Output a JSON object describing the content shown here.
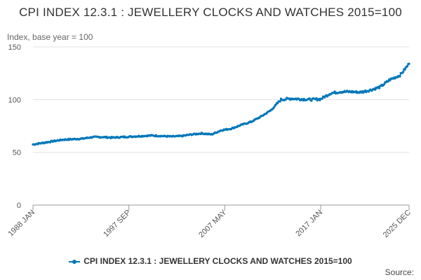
{
  "chart_data": {
    "type": "line",
    "title": "CPI INDEX 12.3.1 : JEWELLERY CLOCKS AND WATCHES 2015=100",
    "ylabel": "Index, base year = 100",
    "xlabel": "",
    "ylim": [
      0,
      150
    ],
    "yticks": [
      0,
      50,
      100,
      150
    ],
    "xticks": [
      "1988 JAN",
      "1997 SEP",
      "2007 MAY",
      "2017 JAN",
      "2025 DEC"
    ],
    "xrange": [
      "1988 JAN",
      "2025 DEC"
    ],
    "grid": true,
    "legend_position": "bottom",
    "series": [
      {
        "name": "CPI INDEX 12.3.1 : JEWELLERY CLOCKS AND WATCHES 2015=100",
        "color": "#0077b9",
        "x": [
          "1988 JAN",
          "1989 JAN",
          "1990 JAN",
          "1991 JAN",
          "1992 JAN",
          "1993 JAN",
          "1994 JAN",
          "1995 JAN",
          "1996 JAN",
          "1997 JAN",
          "1998 JAN",
          "1999 JAN",
          "2000 JAN",
          "2001 JAN",
          "2002 JAN",
          "2003 JAN",
          "2004 JAN",
          "2005 JAN",
          "2006 JAN",
          "2007 JAN",
          "2008 JAN",
          "2009 JAN",
          "2010 JAN",
          "2011 JAN",
          "2012 JAN",
          "2013 JAN",
          "2014 JAN",
          "2015 JAN",
          "2016 JAN",
          "2017 JAN",
          "2018 JAN",
          "2019 JAN",
          "2020 JAN",
          "2021 JAN",
          "2022 JAN",
          "2023 JAN",
          "2024 JAN",
          "2025 JAN",
          "2025 DEC"
        ],
        "values": [
          57.5,
          59,
          60.5,
          62,
          62.5,
          63,
          64.5,
          64.5,
          64,
          64.5,
          65,
          65.5,
          66,
          65.5,
          65,
          65.5,
          67,
          68,
          67,
          71,
          72.5,
          76,
          79,
          84,
          90,
          100,
          101,
          100.5,
          100,
          100.5,
          106,
          107.5,
          107.5,
          107,
          109,
          112,
          119,
          123,
          134
        ]
      }
    ]
  },
  "source_label": "Source:"
}
